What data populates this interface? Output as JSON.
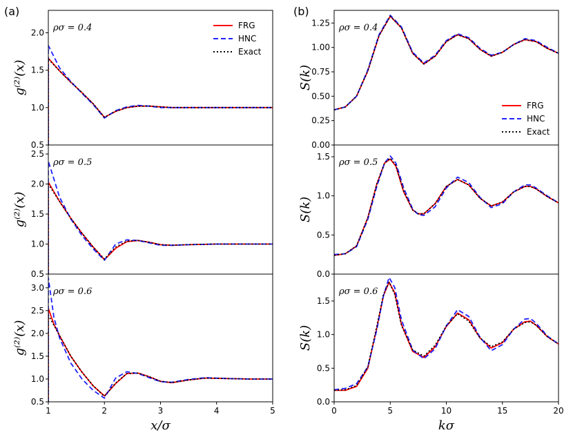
{
  "figure": {
    "left_panel_label": "(a)",
    "right_panel_label": "(b)"
  },
  "legend": [
    {
      "label": "FRG",
      "color": "#ff0000",
      "style": "solid"
    },
    {
      "label": "HNC",
      "color": "#1f1fff",
      "style": "dashed"
    },
    {
      "label": "Exact",
      "color": "#000000",
      "style": "dotted"
    }
  ],
  "chart_data": [
    {
      "id": "g_04",
      "type": "line",
      "column": "left",
      "row": 0,
      "annotation": "ρσ = 0.4",
      "ylabel": "g⁽²⁾(x)",
      "xlabel": "",
      "xlim": [
        1,
        5
      ],
      "ylim": [
        0.5,
        2.3
      ],
      "yticks": [
        "0.5",
        "1.0",
        "1.5",
        "2.0"
      ],
      "xticks": [],
      "legend": true,
      "series": [
        {
          "name": "FRG",
          "x": [
            1.0,
            1.2,
            1.4,
            1.6,
            1.8,
            2.0,
            2.2,
            2.4,
            2.6,
            2.8,
            3.0,
            3.2,
            3.5,
            4.0,
            4.5,
            5.0
          ],
          "y": [
            1.66,
            1.49,
            1.34,
            1.2,
            1.05,
            0.87,
            0.95,
            1.0,
            1.02,
            1.02,
            1.01,
            1.0,
            1.0,
            1.0,
            1.0,
            1.0
          ]
        },
        {
          "name": "HNC",
          "x": [
            1.0,
            1.2,
            1.4,
            1.6,
            1.8,
            2.0,
            2.2,
            2.4,
            2.6,
            2.8,
            3.0,
            3.2,
            3.5,
            4.0,
            4.5,
            5.0
          ],
          "y": [
            1.83,
            1.53,
            1.35,
            1.19,
            1.04,
            0.86,
            0.96,
            1.01,
            1.03,
            1.02,
            1.0,
            1.0,
            1.0,
            1.0,
            1.0,
            1.0
          ]
        },
        {
          "name": "Exact",
          "x": [
            1.0,
            1.2,
            1.4,
            1.6,
            1.8,
            2.0,
            2.2,
            2.4,
            2.6,
            2.8,
            3.0,
            3.2,
            3.5,
            4.0,
            4.5,
            5.0
          ],
          "y": [
            1.65,
            1.49,
            1.34,
            1.2,
            1.05,
            0.87,
            0.95,
            1.0,
            1.02,
            1.02,
            1.01,
            1.0,
            1.0,
            1.0,
            1.0,
            1.0
          ]
        }
      ]
    },
    {
      "id": "g_05",
      "type": "line",
      "column": "left",
      "row": 1,
      "annotation": "ρσ = 0.5",
      "ylabel": "g⁽²⁾(x)",
      "xlabel": "",
      "xlim": [
        1,
        5
      ],
      "ylim": [
        0.5,
        2.65
      ],
      "yticks": [
        "0.5",
        "1.0",
        "1.5",
        "2.0",
        "2.5"
      ],
      "xticks": [],
      "legend": false,
      "series": [
        {
          "name": "FRG",
          "x": [
            1.0,
            1.2,
            1.4,
            1.6,
            1.8,
            2.0,
            2.2,
            2.4,
            2.6,
            2.8,
            3.0,
            3.2,
            3.5,
            4.0,
            4.5,
            5.0
          ],
          "y": [
            2.03,
            1.71,
            1.43,
            1.18,
            0.95,
            0.74,
            0.93,
            1.04,
            1.06,
            1.03,
            0.99,
            0.98,
            0.99,
            1.0,
            1.0,
            1.0
          ]
        },
        {
          "name": "HNC",
          "x": [
            1.0,
            1.2,
            1.4,
            1.6,
            1.8,
            2.0,
            2.2,
            2.4,
            2.6,
            2.8,
            3.0,
            3.2,
            3.5,
            4.0,
            4.5,
            5.0
          ],
          "y": [
            2.38,
            1.78,
            1.42,
            1.14,
            0.92,
            0.73,
            1.0,
            1.07,
            1.06,
            1.02,
            0.98,
            0.98,
            0.99,
            1.0,
            1.0,
            1.0
          ]
        },
        {
          "name": "Exact",
          "x": [
            1.0,
            1.2,
            1.4,
            1.6,
            1.8,
            2.0,
            2.2,
            2.4,
            2.6,
            2.8,
            3.0,
            3.2,
            3.5,
            4.0,
            4.5,
            5.0
          ],
          "y": [
            2.0,
            1.71,
            1.43,
            1.18,
            0.95,
            0.75,
            0.95,
            1.05,
            1.06,
            1.03,
            0.99,
            0.98,
            0.99,
            1.0,
            1.0,
            1.0
          ]
        }
      ]
    },
    {
      "id": "g_06",
      "type": "line",
      "column": "left",
      "row": 2,
      "annotation": "ρσ = 0.6",
      "ylabel": "g⁽²⁾(x)",
      "xlabel": "x/σ",
      "xlim": [
        1,
        5
      ],
      "ylim": [
        0.5,
        3.3
      ],
      "yticks": [
        "0.5",
        "1.0",
        "1.5",
        "2.0",
        "2.5",
        "3.0"
      ],
      "xticks": [
        "1",
        "2",
        "3",
        "4",
        "5"
      ],
      "legend": false,
      "series": [
        {
          "name": "FRG",
          "x": [
            1.0,
            1.1,
            1.2,
            1.4,
            1.6,
            1.8,
            2.0,
            2.2,
            2.4,
            2.6,
            2.8,
            3.0,
            3.2,
            3.5,
            3.8,
            4.2,
            4.6,
            5.0
          ],
          "y": [
            2.55,
            2.2,
            1.95,
            1.5,
            1.15,
            0.85,
            0.63,
            0.9,
            1.12,
            1.13,
            1.05,
            0.95,
            0.92,
            0.98,
            1.02,
            1.01,
            1.0,
            1.0
          ]
        },
        {
          "name": "HNC",
          "x": [
            1.0,
            1.1,
            1.2,
            1.4,
            1.6,
            1.8,
            2.0,
            2.2,
            2.4,
            2.6,
            2.8,
            3.0,
            3.2,
            3.5,
            3.8,
            4.2,
            4.6,
            5.0
          ],
          "y": [
            3.22,
            2.35,
            1.9,
            1.35,
            1.0,
            0.75,
            0.58,
            1.02,
            1.16,
            1.12,
            1.03,
            0.94,
            0.93,
            0.99,
            1.03,
            1.01,
            1.0,
            1.0
          ]
        },
        {
          "name": "Exact",
          "x": [
            1.0,
            1.1,
            1.2,
            1.4,
            1.6,
            1.8,
            2.0,
            2.2,
            2.4,
            2.6,
            2.8,
            3.0,
            3.2,
            3.5,
            3.8,
            4.2,
            4.6,
            5.0
          ],
          "y": [
            2.4,
            2.18,
            1.95,
            1.5,
            1.15,
            0.85,
            0.62,
            0.91,
            1.12,
            1.13,
            1.05,
            0.95,
            0.92,
            0.98,
            1.02,
            1.01,
            1.0,
            1.0
          ]
        }
      ]
    },
    {
      "id": "S_04",
      "type": "line",
      "column": "right",
      "row": 0,
      "annotation": "ρσ = 0.4",
      "ylabel": "S(k)",
      "xlabel": "",
      "xlim": [
        0,
        20
      ],
      "ylim": [
        0,
        1.38
      ],
      "yticks": [
        "0.00",
        "0.25",
        "0.50",
        "0.75",
        "1.00",
        "1.25"
      ],
      "xticks": [],
      "legend": true,
      "series": [
        {
          "name": "FRG",
          "x": [
            0,
            1,
            2,
            3,
            4,
            5,
            6,
            7,
            8,
            9,
            10,
            11,
            12,
            13,
            14,
            15,
            16,
            17,
            18,
            19,
            20
          ],
          "y": [
            0.36,
            0.39,
            0.5,
            0.76,
            1.12,
            1.32,
            1.2,
            0.94,
            0.83,
            0.91,
            1.06,
            1.13,
            1.09,
            0.98,
            0.91,
            0.95,
            1.03,
            1.08,
            1.06,
            0.99,
            0.94
          ]
        },
        {
          "name": "HNC",
          "x": [
            0,
            1,
            2,
            3,
            4,
            5,
            6,
            7,
            8,
            9,
            10,
            11,
            12,
            13,
            14,
            15,
            16,
            17,
            18,
            19,
            20
          ],
          "y": [
            0.36,
            0.39,
            0.5,
            0.77,
            1.13,
            1.33,
            1.21,
            0.95,
            0.84,
            0.92,
            1.07,
            1.14,
            1.1,
            0.99,
            0.92,
            0.95,
            1.03,
            1.09,
            1.07,
            1.0,
            0.94
          ]
        },
        {
          "name": "Exact",
          "x": [
            0,
            1,
            2,
            3,
            4,
            5,
            6,
            7,
            8,
            9,
            10,
            11,
            12,
            13,
            14,
            15,
            16,
            17,
            18,
            19,
            20
          ],
          "y": [
            0.36,
            0.39,
            0.5,
            0.76,
            1.12,
            1.32,
            1.2,
            0.94,
            0.83,
            0.91,
            1.06,
            1.13,
            1.09,
            0.98,
            0.91,
            0.95,
            1.03,
            1.08,
            1.06,
            0.99,
            0.94
          ]
        }
      ]
    },
    {
      "id": "S_05",
      "type": "line",
      "column": "right",
      "row": 1,
      "annotation": "ρσ = 0.5",
      "ylabel": "S(k)",
      "xlabel": "",
      "xlim": [
        0,
        20
      ],
      "ylim": [
        0,
        1.65
      ],
      "yticks": [
        "0.0",
        "0.5",
        "1.0",
        "1.5"
      ],
      "xticks": [],
      "legend": false,
      "series": [
        {
          "name": "FRG",
          "x": [
            0,
            1,
            2,
            3,
            3.8,
            4.5,
            5.0,
            5.5,
            6.2,
            7,
            7.5,
            8,
            9,
            10,
            11,
            12,
            13,
            14,
            15,
            16,
            17,
            17.5,
            18,
            19,
            20
          ],
          "y": [
            0.24,
            0.26,
            0.36,
            0.72,
            1.15,
            1.42,
            1.47,
            1.38,
            1.05,
            0.82,
            0.77,
            0.77,
            0.9,
            1.12,
            1.21,
            1.14,
            0.97,
            0.87,
            0.92,
            1.05,
            1.12,
            1.12,
            1.09,
            0.99,
            0.91
          ]
        },
        {
          "name": "HNC",
          "x": [
            0,
            1,
            2,
            3,
            3.8,
            4.5,
            5.0,
            5.5,
            6.2,
            7,
            7.5,
            8,
            9,
            10,
            11,
            12,
            13,
            14,
            15,
            16,
            17,
            17.5,
            18,
            19,
            20
          ],
          "y": [
            0.25,
            0.26,
            0.35,
            0.7,
            1.12,
            1.42,
            1.51,
            1.42,
            1.1,
            0.83,
            0.76,
            0.75,
            0.86,
            1.1,
            1.24,
            1.17,
            0.98,
            0.85,
            0.9,
            1.05,
            1.14,
            1.14,
            1.1,
            1.0,
            0.91
          ]
        },
        {
          "name": "Exact",
          "x": [
            0,
            1,
            2,
            3,
            3.8,
            4.5,
            5.0,
            5.5,
            6.2,
            7,
            7.5,
            8,
            9,
            10,
            11,
            12,
            13,
            14,
            15,
            16,
            17,
            17.5,
            18,
            19,
            20
          ],
          "y": [
            0.24,
            0.26,
            0.36,
            0.72,
            1.15,
            1.42,
            1.48,
            1.39,
            1.06,
            0.82,
            0.77,
            0.77,
            0.9,
            1.12,
            1.21,
            1.14,
            0.97,
            0.87,
            0.92,
            1.05,
            1.12,
            1.12,
            1.09,
            0.99,
            0.91
          ]
        }
      ]
    },
    {
      "id": "S_06",
      "type": "line",
      "column": "right",
      "row": 2,
      "annotation": "ρσ = 0.6",
      "ylabel": "S(k)",
      "xlabel": "kσ",
      "xlim": [
        0,
        20
      ],
      "ylim": [
        0,
        1.9
      ],
      "yticks": [
        "0.0",
        "0.5",
        "1.0",
        "1.5"
      ],
      "xticks": [
        "0",
        "5",
        "10",
        "15",
        "20"
      ],
      "legend": false,
      "series": [
        {
          "name": "FRG",
          "x": [
            0,
            1,
            2,
            3,
            3.8,
            4.4,
            4.9,
            5.4,
            6.0,
            7,
            8,
            9,
            10,
            11,
            12,
            13,
            14,
            15,
            16,
            17,
            17.5,
            18,
            19,
            20
          ],
          "y": [
            0.17,
            0.17,
            0.23,
            0.5,
            1.1,
            1.58,
            1.78,
            1.62,
            1.15,
            0.75,
            0.66,
            0.82,
            1.12,
            1.32,
            1.22,
            0.95,
            0.8,
            0.88,
            1.08,
            1.19,
            1.2,
            1.14,
            0.97,
            0.86
          ]
        },
        {
          "name": "HNC",
          "x": [
            0,
            1,
            2,
            3,
            3.8,
            4.4,
            4.9,
            5.4,
            6.0,
            7,
            8,
            9,
            10,
            11,
            12,
            13,
            14,
            15,
            16,
            17,
            17.5,
            18,
            19,
            20
          ],
          "y": [
            0.18,
            0.2,
            0.27,
            0.52,
            1.07,
            1.58,
            1.85,
            1.7,
            1.22,
            0.77,
            0.64,
            0.79,
            1.13,
            1.37,
            1.27,
            0.96,
            0.76,
            0.85,
            1.08,
            1.23,
            1.24,
            1.17,
            0.98,
            0.86
          ]
        },
        {
          "name": "Exact",
          "x": [
            0,
            1,
            2,
            3,
            3.8,
            4.4,
            4.9,
            5.4,
            6.0,
            7,
            8,
            9,
            10,
            11,
            12,
            13,
            14,
            15,
            16,
            17,
            17.5,
            18,
            19,
            20
          ],
          "y": [
            0.17,
            0.18,
            0.24,
            0.52,
            1.12,
            1.6,
            1.78,
            1.6,
            1.14,
            0.77,
            0.68,
            0.84,
            1.13,
            1.31,
            1.2,
            0.95,
            0.82,
            0.89,
            1.08,
            1.18,
            1.19,
            1.14,
            0.97,
            0.86
          ]
        }
      ]
    }
  ]
}
